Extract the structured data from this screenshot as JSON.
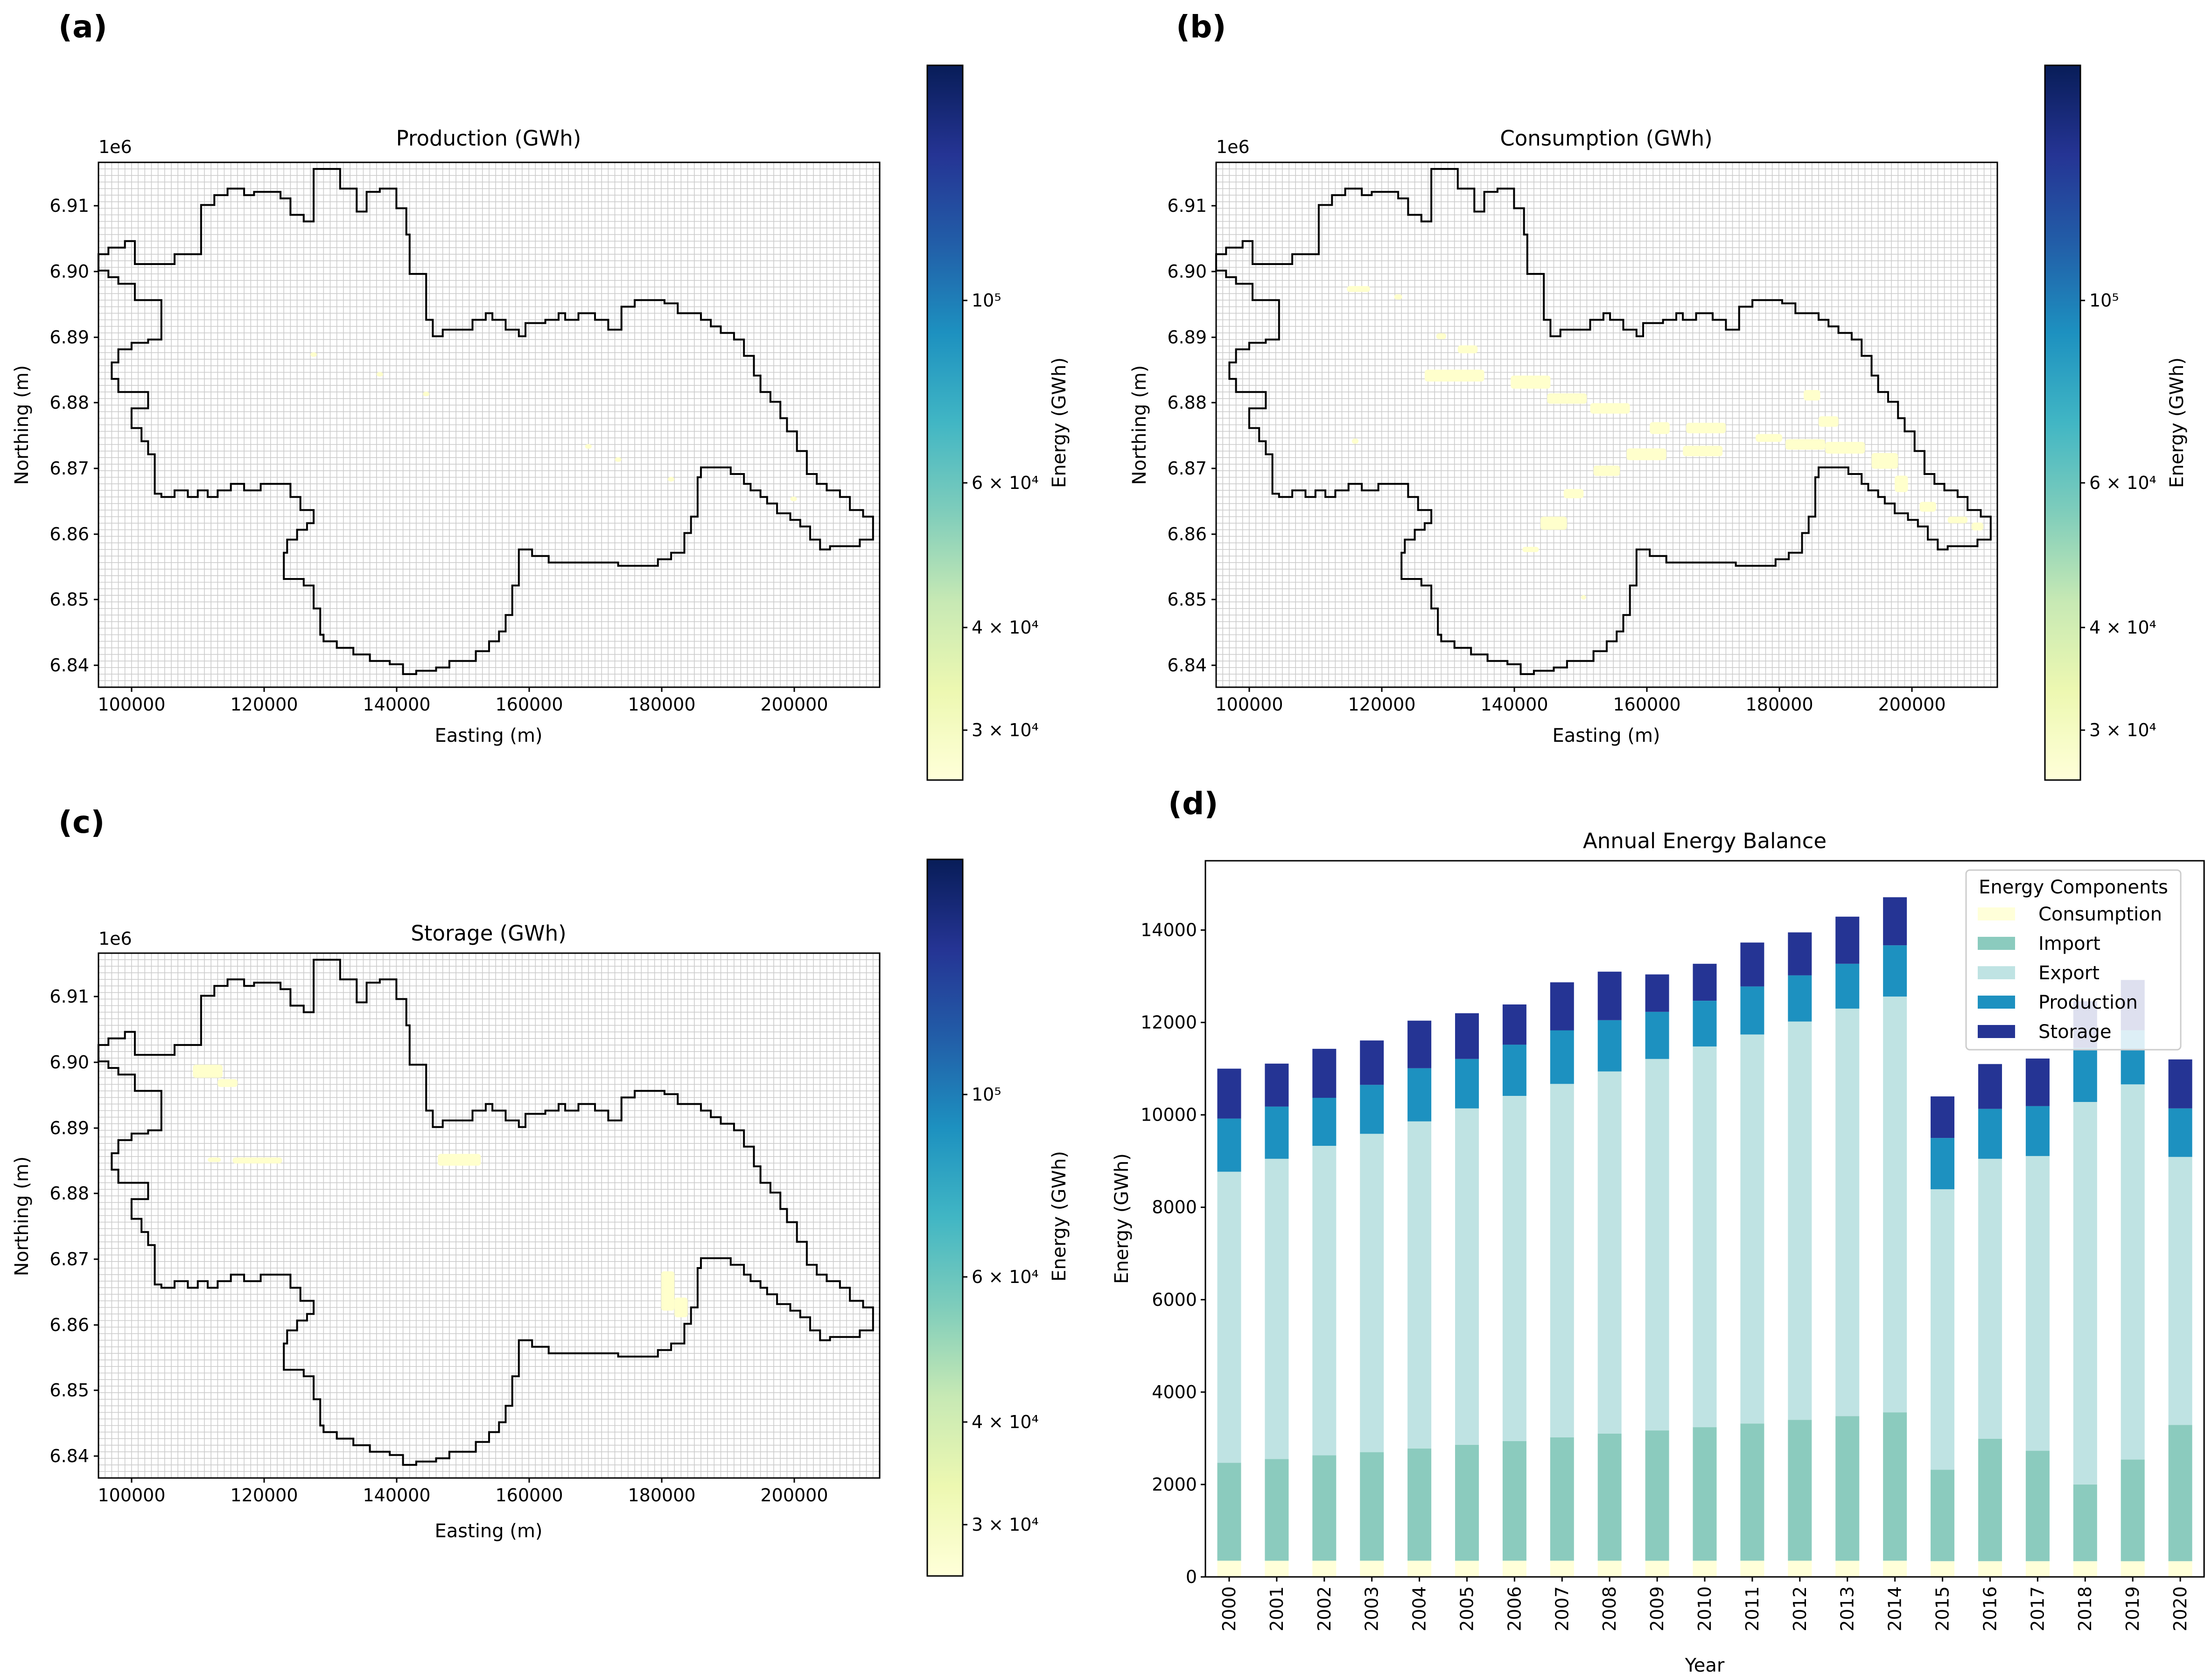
{
  "maps": [
    {
      "id": "a",
      "label": "(a)",
      "title": "Production (GWh)",
      "xlabel": "Easting (m)",
      "ylabel": "Northing (m)",
      "offset_text": "1e6",
      "xlim": [
        95000,
        213000
      ],
      "ylim": [
        6837000,
        6917000
      ],
      "xticks": [
        "100000",
        "120000",
        "140000",
        "160000",
        "180000",
        "200000"
      ],
      "yticks": [
        "6.84",
        "6.85",
        "6.86",
        "6.87",
        "6.88",
        "6.89",
        "6.90",
        "6.91"
      ],
      "colorbar_label": "Energy (GWh)",
      "colorbar_ticks": [
        "3 × 10⁴",
        "4 × 10⁴",
        "6 × 10⁴",
        "10⁵"
      ],
      "hotspots": [
        [
          127500,
          6887700,
          1000,
          700
        ],
        [
          137500,
          6884700,
          1000,
          700
        ],
        [
          144500,
          6881700,
          1000,
          700
        ],
        [
          169000,
          6873700,
          1000,
          700
        ],
        [
          173500,
          6871700,
          1000,
          700
        ],
        [
          181500,
          6868700,
          1000,
          700
        ],
        [
          200000,
          6865700,
          1000,
          700
        ]
      ]
    },
    {
      "id": "b",
      "label": "(b)",
      "title": "Consumption (GWh)",
      "xlabel": "Easting (m)",
      "ylabel": "Northing (m)",
      "offset_text": "1e6",
      "xlim": [
        95000,
        213000
      ],
      "ylim": [
        6837000,
        6917000
      ],
      "xticks": [
        "100000",
        "120000",
        "140000",
        "160000",
        "180000",
        "200000"
      ],
      "yticks": [
        "6.84",
        "6.85",
        "6.86",
        "6.87",
        "6.88",
        "6.89",
        "6.90",
        "6.91"
      ],
      "colorbar_label": "Energy (GWh)",
      "colorbar_ticks": [
        "3 × 10⁴",
        "4 × 10⁴",
        "6 × 10⁴",
        "10⁵"
      ],
      "hotspots": [
        [
          116500,
          6897700,
          3500,
          900
        ],
        [
          122500,
          6896500,
          1200,
          800
        ],
        [
          129000,
          6890500,
          1500,
          900
        ],
        [
          133000,
          6888500,
          3000,
          1200
        ],
        [
          131000,
          6884500,
          9000,
          1800
        ],
        [
          142500,
          6883500,
          6000,
          2000
        ],
        [
          148000,
          6881000,
          6000,
          1600
        ],
        [
          154500,
          6879500,
          6000,
          1600
        ],
        [
          162000,
          6876500,
          3000,
          1800
        ],
        [
          169000,
          6876500,
          6000,
          1600
        ],
        [
          168500,
          6873000,
          6000,
          1600
        ],
        [
          160000,
          6872500,
          6000,
          1800
        ],
        [
          154000,
          6870000,
          4000,
          1600
        ],
        [
          149000,
          6866500,
          3000,
          1400
        ],
        [
          146000,
          6862000,
          4000,
          2000
        ],
        [
          142500,
          6858000,
          2500,
          800
        ],
        [
          178500,
          6875000,
          4000,
          1200
        ],
        [
          184000,
          6874000,
          6000,
          1600
        ],
        [
          190000,
          6873500,
          6000,
          1800
        ],
        [
          196000,
          6871500,
          4000,
          2400
        ],
        [
          185000,
          6881500,
          2500,
          1600
        ],
        [
          187500,
          6877500,
          3000,
          1600
        ],
        [
          198500,
          6868000,
          2000,
          2500
        ],
        [
          202500,
          6864500,
          2500,
          1500
        ],
        [
          207000,
          6862500,
          3000,
          1000
        ],
        [
          210000,
          6861500,
          1800,
          1200
        ],
        [
          116000,
          6874500,
          1000,
          800
        ],
        [
          150500,
          6850700,
          800,
          700
        ]
      ]
    },
    {
      "id": "c",
      "label": "(c)",
      "title": "Storage (GWh)",
      "xlabel": "Easting (m)",
      "ylabel": "Northing (m)",
      "offset_text": "1e6",
      "xlim": [
        95000,
        213000
      ],
      "ylim": [
        6837000,
        6917000
      ],
      "xticks": [
        "100000",
        "120000",
        "140000",
        "160000",
        "180000",
        "200000"
      ],
      "yticks": [
        "6.84",
        "6.85",
        "6.86",
        "6.87",
        "6.88",
        "6.89",
        "6.90",
        "6.91"
      ],
      "colorbar_label": "Energy (GWh)",
      "colorbar_ticks": [
        "3 × 10⁴",
        "4 × 10⁴",
        "6 × 10⁴",
        "10⁵"
      ],
      "hotspots": [
        [
          111500,
          6899000,
          4500,
          2000
        ],
        [
          114500,
          6897200,
          3000,
          1200
        ],
        [
          112500,
          6885500,
          2000,
          700
        ],
        [
          119000,
          6885400,
          7500,
          900
        ],
        [
          149500,
          6885500,
          6500,
          1800
        ],
        [
          181000,
          6865500,
          2000,
          6000
        ],
        [
          183000,
          6863000,
          2000,
          3000
        ]
      ]
    }
  ],
  "chart_data": {
    "type": "bar",
    "label": "(d)",
    "title": "Annual Energy Balance",
    "xlabel": "Year",
    "ylabel": "Energy (GWh)",
    "ylim": [
      0,
      15500
    ],
    "yticks": [
      0,
      2000,
      4000,
      6000,
      8000,
      10000,
      12000,
      14000
    ],
    "stacked": true,
    "grid": false,
    "legend_title": "Energy Components",
    "legend_position": "top-right",
    "categories": [
      "2000",
      "2001",
      "2002",
      "2003",
      "2004",
      "2005",
      "2006",
      "2007",
      "2008",
      "2009",
      "2010",
      "2011",
      "2012",
      "2013",
      "2014",
      "2015",
      "2016",
      "2017",
      "2018",
      "2019",
      "2020"
    ],
    "series": [
      {
        "name": "Consumption",
        "color": "#ffffd9",
        "values": [
          350,
          350,
          350,
          350,
          350,
          350,
          350,
          350,
          350,
          350,
          350,
          350,
          350,
          350,
          350,
          340,
          340,
          340,
          340,
          340,
          340
        ]
      },
      {
        "name": "Import",
        "color": "#8bcbbe",
        "values": [
          2120,
          2200,
          2280,
          2350,
          2430,
          2510,
          2590,
          2670,
          2750,
          2820,
          2890,
          2970,
          3050,
          3130,
          3210,
          1980,
          2650,
          2390,
          1660,
          2200,
          2950
        ]
      },
      {
        "name": "Export",
        "color": "#bfe3e3",
        "values": [
          6300,
          6500,
          6700,
          6890,
          7080,
          7280,
          7470,
          7650,
          7840,
          8040,
          8240,
          8420,
          8620,
          8820,
          9000,
          6070,
          6060,
          6380,
          8280,
          8120,
          5800
        ]
      },
      {
        "name": "Production",
        "color": "#1d91c0",
        "values": [
          1150,
          1130,
          1040,
          1060,
          1150,
          1070,
          1110,
          1160,
          1110,
          1020,
          990,
          1040,
          1000,
          970,
          1110,
          1110,
          1080,
          1080,
          1170,
          1170,
          1050
        ]
      },
      {
        "name": "Storage",
        "color": "#253494",
        "values": [
          1080,
          930,
          1060,
          960,
          1030,
          990,
          870,
          1040,
          1050,
          810,
          800,
          950,
          930,
          1020,
          1040,
          900,
          970,
          1030,
          1010,
          1090,
          1060
        ]
      }
    ]
  },
  "colors": {
    "colormap": [
      "#ffffd9",
      "#edf8b1",
      "#c7e9b4",
      "#7fcdbb",
      "#41b6c4",
      "#1d91c0",
      "#225ea8",
      "#253494",
      "#081d58"
    ],
    "hotspot": "#ffffcc",
    "grid": "#cccccc",
    "boundary": "#000000"
  }
}
